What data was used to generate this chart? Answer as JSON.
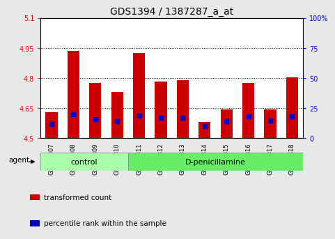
{
  "title": "GDS1394 / 1387287_a_at",
  "samples": [
    "GSM61807",
    "GSM61808",
    "GSM61809",
    "GSM61810",
    "GSM61811",
    "GSM61812",
    "GSM61813",
    "GSM61814",
    "GSM61815",
    "GSM61816",
    "GSM61817",
    "GSM61818"
  ],
  "transformed_count": [
    4.63,
    4.935,
    4.775,
    4.73,
    4.925,
    4.785,
    4.79,
    4.58,
    4.645,
    4.775,
    4.645,
    4.805
  ],
  "percentile_rank": [
    12,
    20,
    16,
    14,
    19,
    17,
    17,
    10,
    14,
    18,
    15,
    18
  ],
  "ylim_left": [
    4.5,
    5.1
  ],
  "ylim_right": [
    0,
    100
  ],
  "yticks_left": [
    4.5,
    4.65,
    4.8,
    4.95,
    5.1
  ],
  "ytick_labels_left": [
    "4.5",
    "4.65",
    "4.8",
    "4.95",
    "5.1"
  ],
  "yticks_right": [
    0,
    25,
    50,
    75,
    100
  ],
  "ytick_labels_right": [
    "0",
    "25",
    "50",
    "75",
    "100%"
  ],
  "bar_color": "#cc0000",
  "dot_color": "#0000cc",
  "bar_bottom": 4.5,
  "bar_width": 0.55,
  "groups": [
    {
      "label": "control",
      "start": 0,
      "end": 3
    },
    {
      "label": "D-penicillamine",
      "start": 4,
      "end": 11
    }
  ],
  "group_colors": [
    "#aaffaa",
    "#66ee66"
  ],
  "agent_label": "agent",
  "tick_fontsize": 7,
  "title_fontsize": 10,
  "background_color": "#e8e8e8",
  "plot_bg_color": "#ffffff",
  "legend_items": [
    {
      "color": "#cc0000",
      "label": "transformed count"
    },
    {
      "color": "#0000cc",
      "label": "percentile rank within the sample"
    }
  ]
}
